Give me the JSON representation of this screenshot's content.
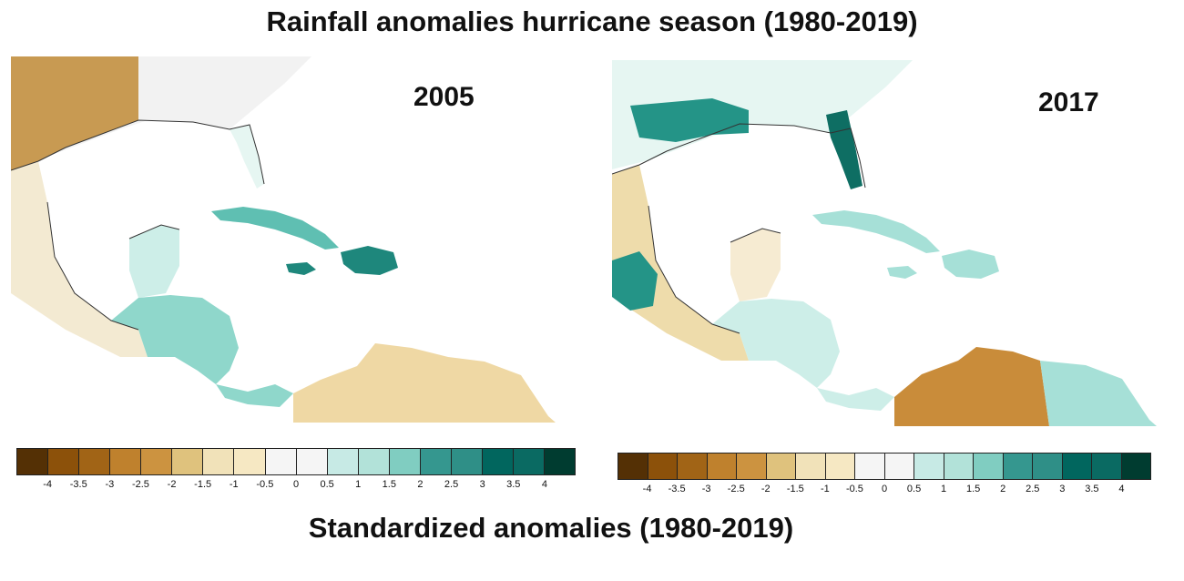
{
  "title": "Rainfall anomalies hurricane season (1980-2019)",
  "subtitle": "Standardized anomalies (1980-2019)",
  "maps": [
    {
      "year": "2005",
      "regions": {
        "texas": "#c89a52",
        "mexico": "#f3ead2",
        "florida": "#e6f6f2",
        "cuba": "#5fbfb2",
        "hispaniola": "#1e877c",
        "jamaica": "#1e877c",
        "yucatan": "#cdeee8",
        "central_america": "#8fd7cb",
        "colombia_venezuela": "#efd8a4",
        "us_southeast": "#f2f2f2"
      }
    },
    {
      "year": "2017",
      "regions": {
        "texas": "#249487",
        "mexico": "#eedcab",
        "florida": "#0e6e63",
        "cuba": "#a6e0d7",
        "hispaniola": "#a6e0d7",
        "jamaica": "#a6e0d7",
        "yucatan": "#f6ebd2",
        "central_america": "#cdeee8",
        "colombia_venezuela": "#c98c3a",
        "us_southeast": "#e6f6f2"
      }
    }
  ],
  "legend": {
    "colors": [
      "#543005",
      "#8c510a",
      "#a16416",
      "#bf812d",
      "#cc9340",
      "#dfc27d",
      "#f1e2b9",
      "#f6e8c3",
      "#f5f5f5",
      "#f5f5f5",
      "#c7eae5",
      "#b2e2d9",
      "#80cdc1",
      "#35978f",
      "#2f8f87",
      "#01665e",
      "#0a6a62",
      "#003c30"
    ],
    "ticks": [
      "-4",
      "-3.5",
      "-3",
      "-2.5",
      "-2",
      "-1.5",
      "-1",
      "-0.5",
      "0",
      "0.5",
      "1",
      "1.5",
      "2",
      "2.5",
      "3",
      "3.5",
      "4"
    ]
  }
}
